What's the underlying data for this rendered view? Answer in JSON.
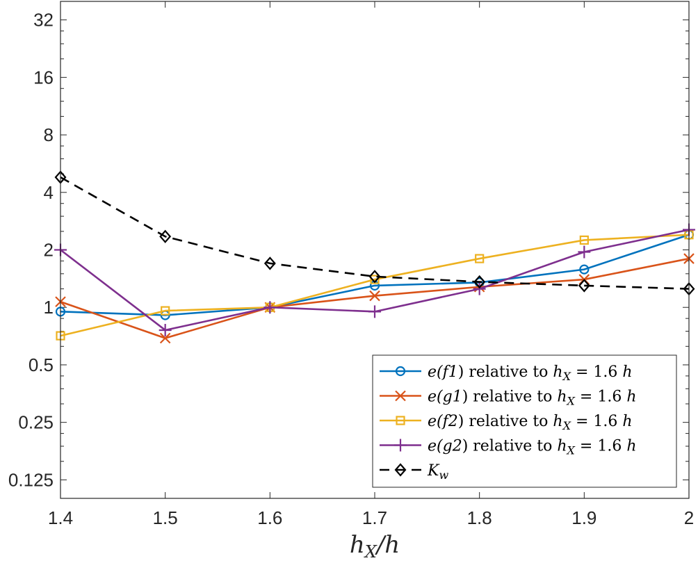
{
  "chart_data": {
    "type": "line",
    "title": "",
    "xlabel": "h_X/h",
    "xlabel_parts": {
      "main": "h",
      "sub": "X",
      "rest": "/h"
    },
    "ylabel": "",
    "xlim": [
      1.4,
      2.0
    ],
    "ylim": [
      0.1,
      40
    ],
    "yscale": "log2",
    "x": [
      1.4,
      1.5,
      1.6,
      1.7,
      1.8,
      1.9,
      2.0
    ],
    "x_tick_labels": [
      "1.4",
      "1.5",
      "1.6",
      "1.7",
      "1.8",
      "1.9",
      "2"
    ],
    "y_ticks": [
      0.125,
      0.25,
      0.5,
      1,
      2,
      4,
      8,
      16,
      32
    ],
    "y_tick_labels": [
      "0.125",
      "0.25",
      "0.5",
      "1",
      "2",
      "4",
      "8",
      "16",
      "32"
    ],
    "grid": false,
    "legend_position": "bottom-right",
    "series": [
      {
        "name": "e(f1) relative to h_X = 1.6 h",
        "fn": "f1",
        "color": "#0072BD",
        "marker": "circle",
        "dash": "solid",
        "values": [
          0.95,
          0.91,
          1.0,
          1.3,
          1.35,
          1.58,
          2.4
        ]
      },
      {
        "name": "e(g1) relative to h_X = 1.6 h",
        "fn": "g1",
        "color": "#D95319",
        "marker": "x",
        "dash": "solid",
        "values": [
          1.07,
          0.69,
          1.0,
          1.15,
          1.28,
          1.4,
          1.8
        ]
      },
      {
        "name": "e(f2) relative to h_X = 1.6 h",
        "fn": "f2",
        "color": "#EDB120",
        "marker": "square",
        "dash": "solid",
        "values": [
          0.71,
          0.96,
          1.0,
          1.4,
          1.8,
          2.25,
          2.4
        ]
      },
      {
        "name": "e(g2) relative to h_X = 1.6 h",
        "fn": "g2",
        "color": "#7E2F8E",
        "marker": "plus",
        "dash": "solid",
        "values": [
          2.0,
          0.76,
          1.0,
          0.95,
          1.25,
          1.95,
          2.55
        ]
      },
      {
        "name": "K_w",
        "color": "#000000",
        "marker": "diamond",
        "dash": "dashed",
        "values": [
          4.8,
          2.35,
          1.7,
          1.45,
          1.36,
          1.3,
          1.25
        ]
      }
    ],
    "legend_entries": [
      {
        "pre": "e(",
        "fn": "f1",
        "post": ") relative to ",
        "h": "h",
        "sub": "X",
        "eq": " = 1.6 ",
        "h2": "h"
      },
      {
        "pre": "e(",
        "fn": "g1",
        "post": ") relative to ",
        "h": "h",
        "sub": "X",
        "eq": " = 1.6 ",
        "h2": "h"
      },
      {
        "pre": "e(",
        "fn": "f2",
        "post": ") relative to ",
        "h": "h",
        "sub": "X",
        "eq": " = 1.6 ",
        "h2": "h"
      },
      {
        "pre": "e(",
        "fn": "g2",
        "post": ") relative to ",
        "h": "h",
        "sub": "X",
        "eq": " = 1.6 ",
        "h2": "h"
      },
      {
        "k": "K",
        "sub": "w"
      }
    ]
  }
}
